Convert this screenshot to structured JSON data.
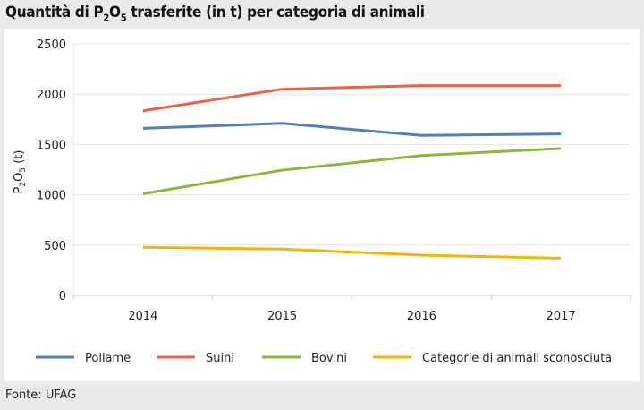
{
  "title": {
    "pre": "Quantità di P",
    "sub1": "2",
    "mid": "O",
    "sub2": "5",
    "post": " trasferite (in t) per categoria di animali"
  },
  "source": "Fonte: UFAG",
  "chart_data": {
    "type": "line",
    "title": "Quantità di P2O5 trasferite (in t) per categoria di animali",
    "ylabel": "P2O5 (t)",
    "xlabel": "",
    "categories": [
      "2014",
      "2015",
      "2016",
      "2017"
    ],
    "ylim": [
      0,
      2500
    ],
    "yticks": [
      0,
      500,
      1000,
      1500,
      2000,
      2500
    ],
    "grid": true,
    "legend": "bottom",
    "series": [
      {
        "name": "Pollame",
        "color": "#4f7ec3",
        "values": [
          1660,
          1710,
          1590,
          1605
        ]
      },
      {
        "name": "Suini",
        "color": "#ee6142",
        "values": [
          1835,
          2050,
          2085,
          2085
        ]
      },
      {
        "name": "Bovini",
        "color": "#8fb63c",
        "values": [
          1010,
          1245,
          1390,
          1460
        ]
      },
      {
        "name": "Categorie di animali sconosciuta",
        "color": "#f7b500",
        "values": [
          478,
          460,
          400,
          370
        ]
      }
    ]
  }
}
